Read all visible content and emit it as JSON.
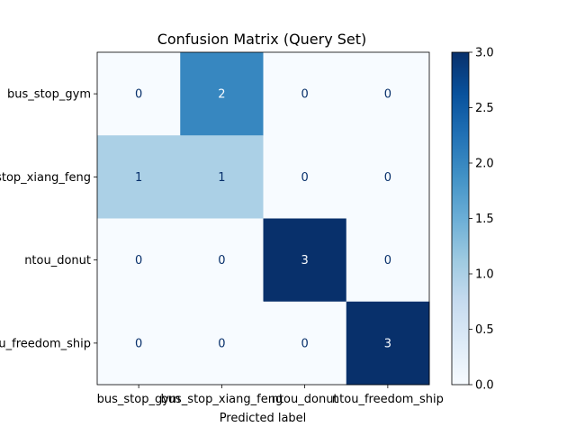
{
  "chart_data": {
    "type": "heatmap",
    "title": "Confusion Matrix (Query Set)",
    "xlabel": "Predicted label",
    "ylabel": "",
    "row_labels": [
      "bus_stop_gym",
      "bus_stop_xiang_feng",
      "ntou_donut",
      "ntou_freedom_ship"
    ],
    "col_labels": [
      "bus_stop_gym",
      "bus_stop_xiang_feng",
      "ntou_donut",
      "ntou_freedom_ship"
    ],
    "values": [
      [
        0,
        2,
        0,
        0
      ],
      [
        1,
        1,
        0,
        0
      ],
      [
        0,
        0,
        3,
        0
      ],
      [
        0,
        0,
        0,
        3
      ]
    ],
    "colormap": "Blues",
    "colorbar": {
      "range": [
        0.0,
        3.0
      ],
      "ticks": [
        "0.0",
        "0.5",
        "1.0",
        "1.5",
        "2.0",
        "2.5",
        "3.0"
      ]
    },
    "colors": {
      "low": "#f7fbff",
      "high": "#08306b",
      "text_on_light": "#08306b",
      "text_on_dark": "#f7fbff"
    }
  }
}
